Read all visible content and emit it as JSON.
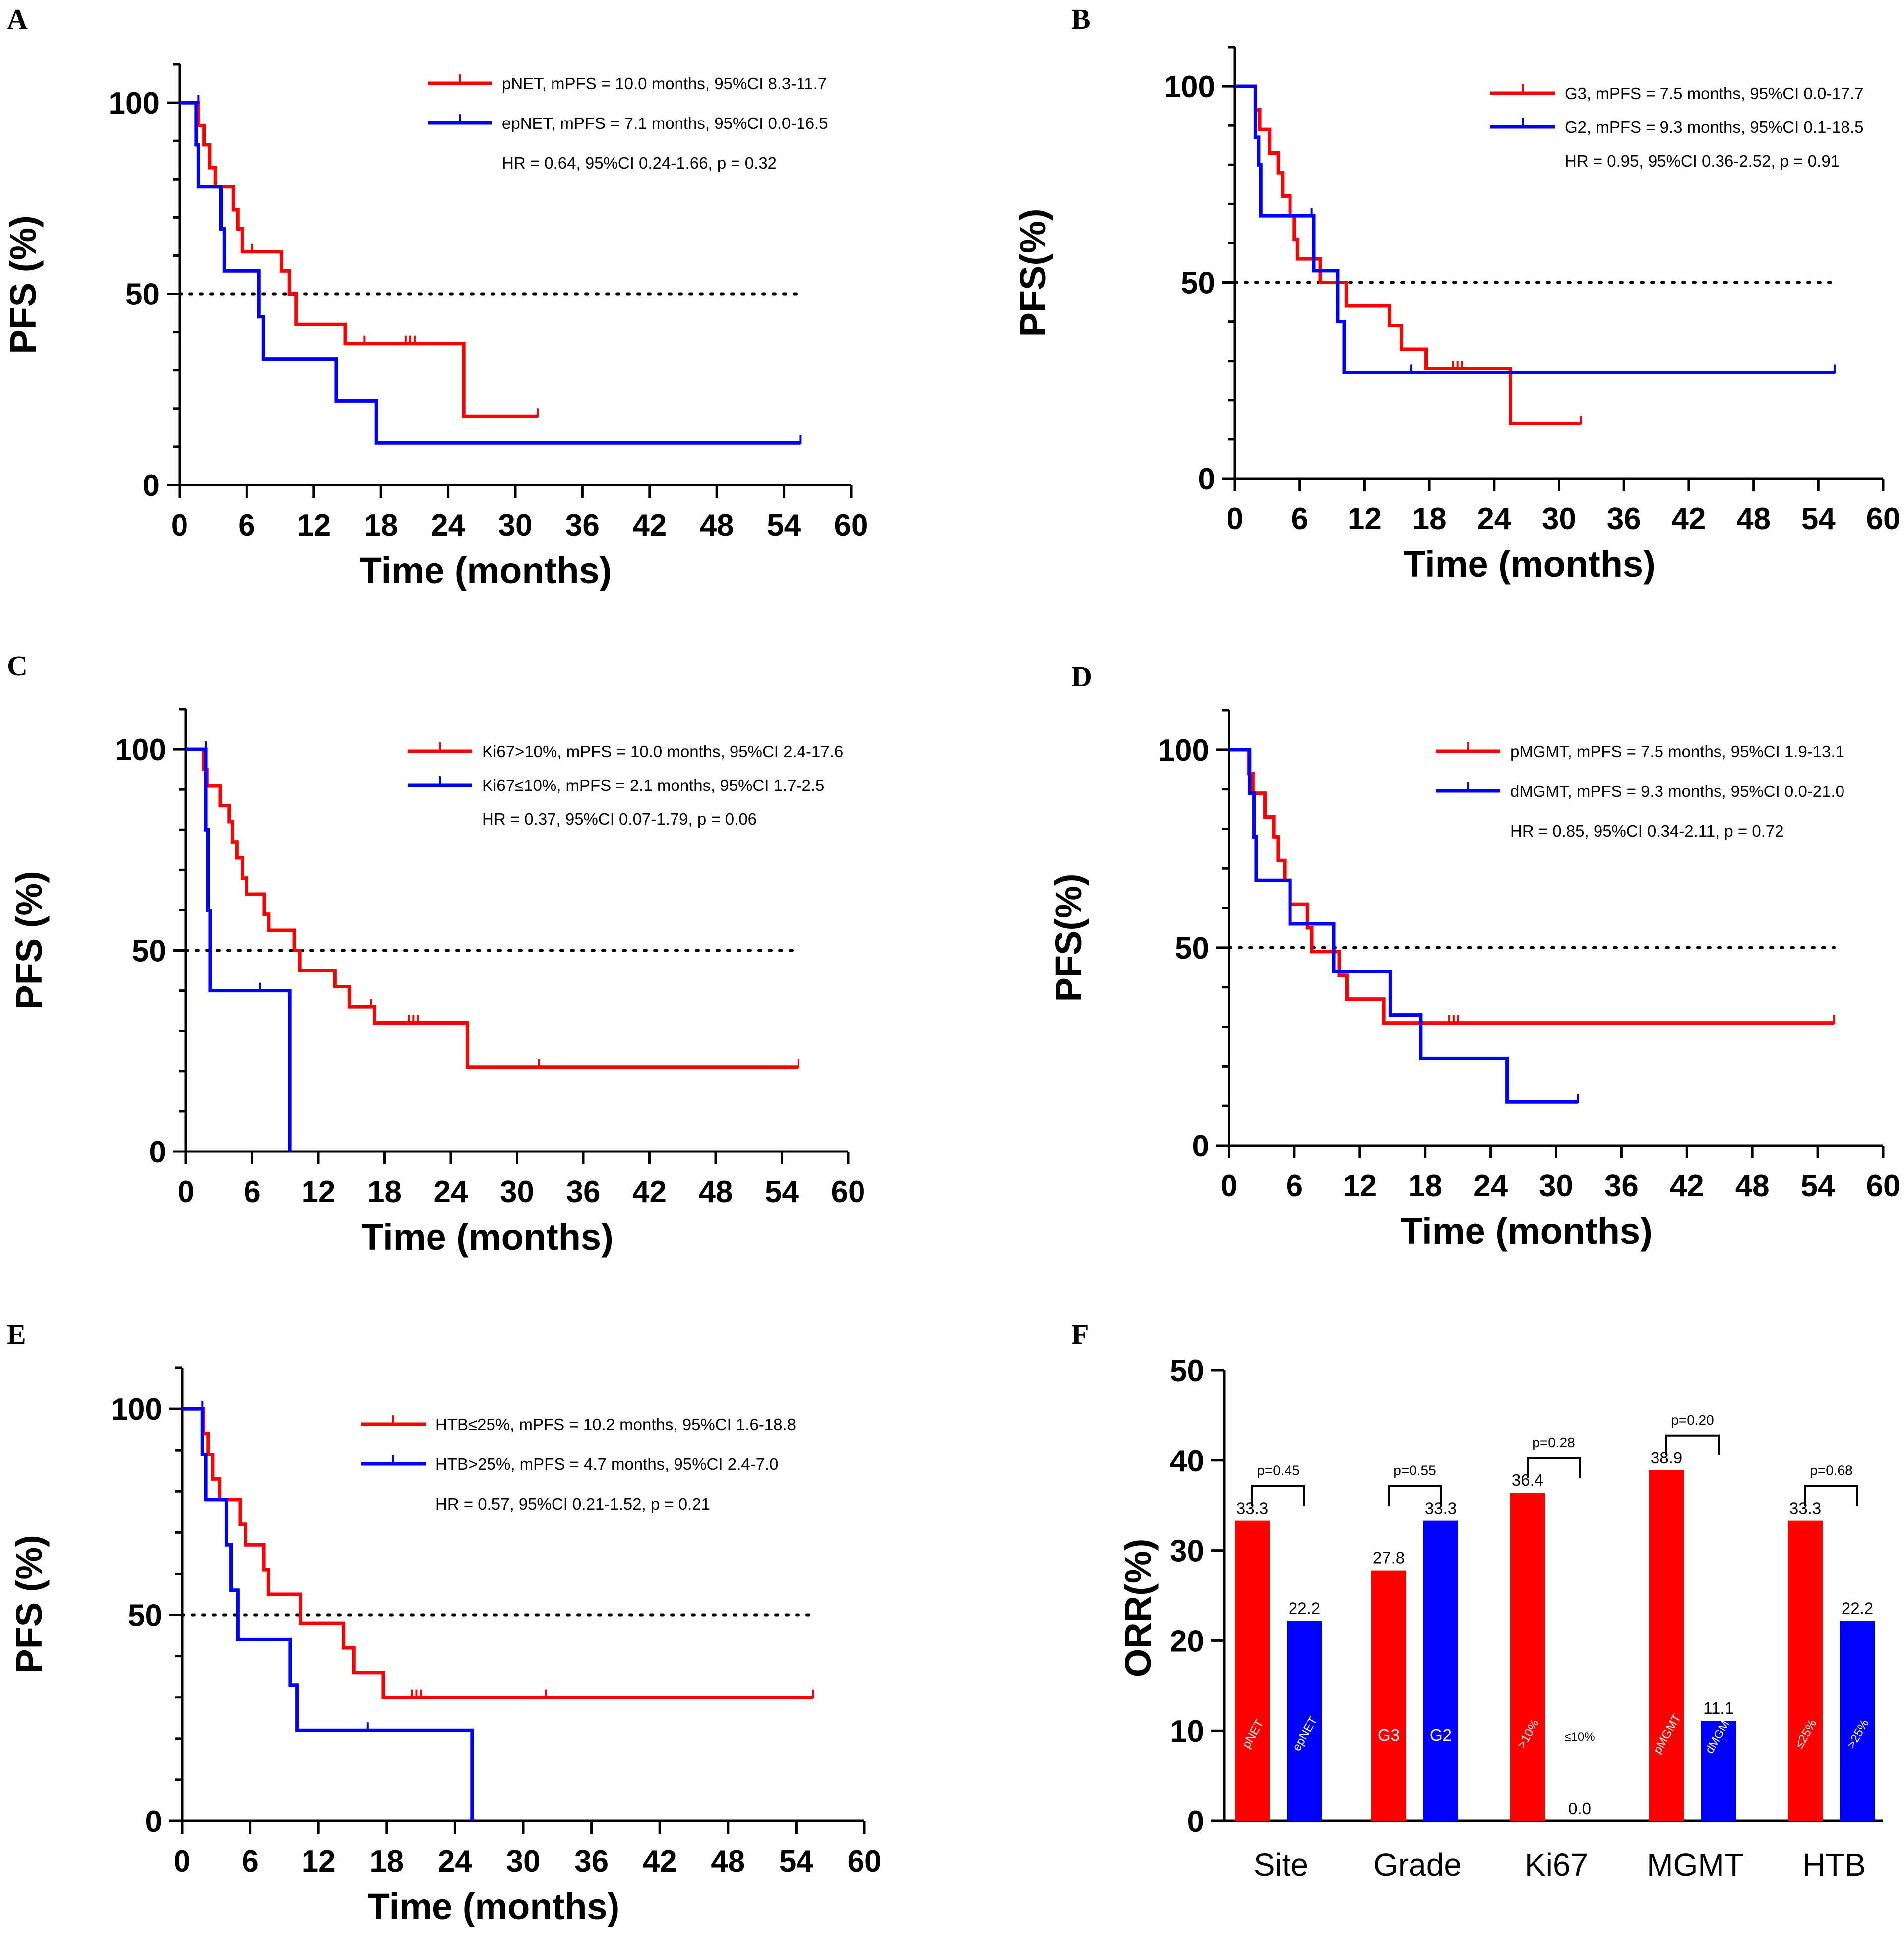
{
  "chart_data": [
    {
      "panel": "A",
      "type": "line",
      "xlabel": "Time (months)",
      "ylabel": "PFS (%)",
      "xlim": [
        0,
        60
      ],
      "xticks": [
        0,
        6,
        12,
        18,
        24,
        30,
        36,
        42,
        48,
        54,
        60
      ],
      "ylim": [
        0,
        110
      ],
      "yticks": [
        0,
        50,
        100
      ],
      "reference_line": 50,
      "legend": {
        "placement": "top-right",
        "note": "HR = 0.64, 95%CI 0.24-1.66, p = 0.32"
      },
      "series": [
        {
          "name": "pNET, mPFS = 10.0 months, 95%CI 8.3-11.7",
          "color": "#ff0000",
          "steps": [
            [
              0,
              100
            ],
            [
              1.7,
              94
            ],
            [
              2.2,
              89
            ],
            [
              2.7,
              83
            ],
            [
              3.2,
              78
            ],
            [
              4.5,
              78
            ],
            [
              4.8,
              72
            ],
            [
              5.2,
              67
            ],
            [
              5.6,
              61
            ],
            [
              8.4,
              61
            ],
            [
              9.1,
              56
            ],
            [
              9.8,
              50
            ],
            [
              10.4,
              42
            ],
            [
              14.8,
              37
            ],
            [
              25.2,
              37
            ],
            [
              25.4,
              18
            ],
            [
              32,
              18
            ]
          ],
          "censors": [
            [
              6.5,
              61
            ],
            [
              16.5,
              37
            ],
            [
              20.2,
              37
            ],
            [
              20.6,
              37
            ],
            [
              21,
              37
            ],
            [
              32,
              18
            ]
          ]
        },
        {
          "name": "epNET, mPFS = 7.1 months, 95%CI 0.0-16.5",
          "color": "#0000ff",
          "steps": [
            [
              0,
              100
            ],
            [
              1.5,
              89
            ],
            [
              1.7,
              78
            ],
            [
              3.4,
              78
            ],
            [
              3.7,
              67
            ],
            [
              4.0,
              56
            ],
            [
              6.8,
              56
            ],
            [
              7.1,
              44
            ],
            [
              7.5,
              33
            ],
            [
              13.8,
              33
            ],
            [
              14.0,
              22
            ],
            [
              17.4,
              22
            ],
            [
              17.6,
              11
            ],
            [
              55.5,
              11
            ]
          ],
          "censors": [
            [
              1.7,
              100
            ],
            [
              55.5,
              11
            ]
          ]
        }
      ]
    },
    {
      "panel": "B",
      "type": "line",
      "xlabel": "Time (months)",
      "ylabel": "PFS(%)",
      "xlim": [
        0,
        60
      ],
      "xticks": [
        0,
        6,
        12,
        18,
        24,
        30,
        36,
        42,
        48,
        54,
        60
      ],
      "ylim": [
        0,
        110
      ],
      "yticks": [
        0,
        50,
        100
      ],
      "reference_line": 50,
      "legend": {
        "placement": "top-right",
        "note": "HR = 0.95, 95%CI 0.36-2.52, p = 0.91"
      },
      "series": [
        {
          "name": "G3, mPFS = 7.5 months, 95%CI 0.0-17.7",
          "color": "#ff0000",
          "steps": [
            [
              0,
              100
            ],
            [
              1.9,
              94
            ],
            [
              2.3,
              89
            ],
            [
              3.2,
              83
            ],
            [
              4.0,
              78
            ],
            [
              4.4,
              72
            ],
            [
              5.1,
              67
            ],
            [
              5.5,
              61
            ],
            [
              5.8,
              56
            ],
            [
              7.5,
              56
            ],
            [
              7.9,
              50
            ],
            [
              9.8,
              50
            ],
            [
              10.3,
              44
            ],
            [
              14.0,
              44
            ],
            [
              14.3,
              39
            ],
            [
              15.4,
              33
            ],
            [
              17.4,
              33
            ],
            [
              17.7,
              28
            ],
            [
              25.3,
              28
            ],
            [
              25.5,
              14
            ],
            [
              32,
              14
            ]
          ],
          "censors": [
            [
              20.2,
              28
            ],
            [
              20.6,
              28
            ],
            [
              21,
              28
            ],
            [
              32,
              14
            ]
          ]
        },
        {
          "name": "G2, mPFS = 9.3 months, 95%CI 0.1-18.5",
          "color": "#0000ff",
          "steps": [
            [
              0,
              100
            ],
            [
              1.9,
              87
            ],
            [
              2.2,
              80
            ],
            [
              2.4,
              67
            ],
            [
              7.1,
              67
            ],
            [
              7.3,
              53
            ],
            [
              9.3,
              53
            ],
            [
              9.5,
              40
            ],
            [
              10.1,
              27
            ],
            [
              55.5,
              27
            ]
          ],
          "censors": [
            [
              7.1,
              67
            ],
            [
              16.3,
              27
            ],
            [
              55.5,
              27
            ]
          ]
        }
      ]
    },
    {
      "panel": "C",
      "type": "line",
      "xlabel": "Time (months)",
      "ylabel": "PFS (%)",
      "xlim": [
        0,
        60
      ],
      "xticks": [
        0,
        6,
        12,
        18,
        24,
        30,
        36,
        42,
        48,
        54,
        60
      ],
      "ylim": [
        0,
        110
      ],
      "yticks": [
        0,
        50,
        100
      ],
      "reference_line": 50,
      "legend": {
        "placement": "top-right",
        "note": "HR = 0.37, 95%CI 0.07-1.79, p = 0.06"
      },
      "series": [
        {
          "name": "Ki67>10%,  mPFS = 10.0 months, 95%CI 2.4-17.6",
          "color": "#ff0000",
          "steps": [
            [
              0,
              100
            ],
            [
              1.6,
              95
            ],
            [
              1.9,
              91
            ],
            [
              3.1,
              86
            ],
            [
              3.9,
              82
            ],
            [
              4.2,
              77
            ],
            [
              4.6,
              73
            ],
            [
              5.1,
              68
            ],
            [
              5.5,
              64
            ],
            [
              7.1,
              59
            ],
            [
              7.5,
              55
            ],
            [
              9.8,
              50
            ],
            [
              10.3,
              45
            ],
            [
              13.5,
              41
            ],
            [
              14.8,
              36
            ],
            [
              16.5,
              36
            ],
            [
              17.1,
              32
            ],
            [
              17.7,
              32
            ],
            [
              25.3,
              32
            ],
            [
              25.5,
              21
            ],
            [
              55.5,
              21
            ]
          ],
          "censors": [
            [
              16.8,
              36
            ],
            [
              20.2,
              32
            ],
            [
              20.6,
              32
            ],
            [
              21,
              32
            ],
            [
              32,
              21
            ],
            [
              55.5,
              21
            ]
          ]
        },
        {
          "name": "Ki67≤10%, mPFS = 2.1 months, 95%CI 1.7-2.5",
          "color": "#0000ff",
          "steps": [
            [
              0,
              100
            ],
            [
              1.7,
              100
            ],
            [
              1.8,
              80
            ],
            [
              2.0,
              60
            ],
            [
              2.2,
              40
            ],
            [
              9.4,
              40
            ],
            [
              9.4,
              0
            ]
          ],
          "censors": [
            [
              1.8,
              100
            ],
            [
              6.7,
              40
            ]
          ]
        }
      ]
    },
    {
      "panel": "D",
      "type": "line",
      "xlabel": "Time (months)",
      "ylabel": "PFS(%)",
      "xlim": [
        0,
        60
      ],
      "xticks": [
        0,
        6,
        12,
        18,
        24,
        30,
        36,
        42,
        48,
        54,
        60
      ],
      "ylim": [
        0,
        110
      ],
      "yticks": [
        0,
        50,
        100
      ],
      "reference_line": 50,
      "legend": {
        "placement": "top-right",
        "note": "HR = 0.85, 95%CI 0.34-2.11, p = 0.72"
      },
      "series": [
        {
          "name": "pMGMT, mPFS = 7.5 months, 95%CI 1.9-13.1",
          "color": "#ff0000",
          "steps": [
            [
              0,
              100
            ],
            [
              1.8,
              94
            ],
            [
              2.2,
              89
            ],
            [
              3.3,
              83
            ],
            [
              4.1,
              78
            ],
            [
              4.5,
              72
            ],
            [
              5.1,
              67
            ],
            [
              5.6,
              61
            ],
            [
              6.7,
              61
            ],
            [
              7.2,
              55
            ],
            [
              7.6,
              49
            ],
            [
              9.5,
              49
            ],
            [
              10.1,
              43
            ],
            [
              10.8,
              37
            ],
            [
              13.8,
              37
            ],
            [
              14.2,
              31
            ],
            [
              55.5,
              31
            ]
          ],
          "censors": [
            [
              20.2,
              31
            ],
            [
              20.6,
              31
            ],
            [
              21,
              31
            ],
            [
              55.5,
              31
            ]
          ]
        },
        {
          "name": "dMGMT, mPFS = 9.3 months, 95%CI 0.0-21.0",
          "color": "#0000ff",
          "steps": [
            [
              0,
              100
            ],
            [
              1.9,
              89
            ],
            [
              2.3,
              78
            ],
            [
              2.5,
              67
            ],
            [
              5.3,
              67
            ],
            [
              5.6,
              56
            ],
            [
              9.3,
              56
            ],
            [
              9.6,
              44
            ],
            [
              14.6,
              44
            ],
            [
              14.8,
              33
            ],
            [
              17.4,
              33
            ],
            [
              17.6,
              22
            ],
            [
              25.3,
              22
            ],
            [
              25.5,
              11
            ],
            [
              32,
              11
            ]
          ],
          "censors": [
            [
              32,
              11
            ]
          ]
        }
      ]
    },
    {
      "panel": "E",
      "type": "line",
      "xlabel": "Time (months)",
      "ylabel": "PFS (%)",
      "xlim": [
        0,
        60
      ],
      "xticks": [
        0,
        6,
        12,
        18,
        24,
        30,
        36,
        42,
        48,
        54,
        60
      ],
      "ylim": [
        0,
        110
      ],
      "yticks": [
        0,
        50,
        100
      ],
      "reference_line": 50,
      "legend": {
        "placement": "top-right",
        "note": "HR = 0.57, 95%CI 0.21-1.52, p = 0.21"
      },
      "series": [
        {
          "name": "HTB≤25%, mPFS = 10.2 months, 95%CI 1.6-18.8",
          "color": "#ff0000",
          "steps": [
            [
              0,
              100
            ],
            [
              1.9,
              94
            ],
            [
              2.3,
              89
            ],
            [
              2.7,
              83
            ],
            [
              3.3,
              78
            ],
            [
              4.9,
              78
            ],
            [
              5.1,
              72
            ],
            [
              5.6,
              67
            ],
            [
              6.8,
              67
            ],
            [
              7.2,
              61
            ],
            [
              7.6,
              55
            ],
            [
              10.1,
              55
            ],
            [
              10.4,
              48
            ],
            [
              13.8,
              48
            ],
            [
              14.2,
              42
            ],
            [
              15.1,
              36
            ],
            [
              17.4,
              36
            ],
            [
              17.7,
              30
            ],
            [
              55.5,
              30
            ]
          ],
          "censors": [
            [
              20.2,
              30
            ],
            [
              20.6,
              30
            ],
            [
              21,
              30
            ],
            [
              32,
              30
            ],
            [
              55.5,
              30
            ]
          ]
        },
        {
          "name": "HTB>25%, mPFS = 4.7 months, 95%CI 2.4-7.0",
          "color": "#0000ff",
          "steps": [
            [
              0,
              100
            ],
            [
              1.8,
              89
            ],
            [
              2.1,
              78
            ],
            [
              3.7,
              78
            ],
            [
              3.9,
              67
            ],
            [
              4.3,
              56
            ],
            [
              4.7,
              56
            ],
            [
              4.9,
              44
            ],
            [
              9.3,
              44
            ],
            [
              9.5,
              33
            ],
            [
              9.8,
              33
            ],
            [
              10.1,
              22
            ],
            [
              25.5,
              22
            ],
            [
              25.5,
              0
            ]
          ],
          "censors": [
            [
              1.8,
              100
            ],
            [
              16.3,
              22
            ]
          ]
        }
      ]
    },
    {
      "panel": "F",
      "type": "bar",
      "xlabel": "",
      "ylabel": "ORR(%)",
      "ylim": [
        0,
        50
      ],
      "yticks": [
        0,
        10,
        20,
        30,
        40,
        50
      ],
      "categories": [
        "Site",
        "Grade",
        "Ki67",
        "MGMT",
        "HTB"
      ],
      "groups": [
        {
          "category": "Site",
          "p": "p=0.45",
          "bars": [
            {
              "label": "pNET",
              "value": 33.3,
              "color": "#ff0000",
              "value_text": "33.3"
            },
            {
              "label": "epNET",
              "value": 22.2,
              "color": "#0000ff",
              "value_text": "22.2"
            }
          ]
        },
        {
          "category": "Grade",
          "p": "p=0.55",
          "bars": [
            {
              "label": "G3",
              "value": 27.8,
              "color": "#ff0000",
              "value_text": "27.8"
            },
            {
              "label": "G2",
              "value": 33.3,
              "color": "#0000ff",
              "value_text": "33.3"
            }
          ]
        },
        {
          "category": "Ki67",
          "p": "p=0.28",
          "bars": [
            {
              "label": ">10%",
              "value": 36.4,
              "color": "#ff0000",
              "value_text": "36.4"
            },
            {
              "label": "≤10%",
              "value": 0.0,
              "color": "#0000ff",
              "value_text": "0.0"
            }
          ]
        },
        {
          "category": "MGMT",
          "p": "p=0.20",
          "bars": [
            {
              "label": "pMGMT",
              "value": 38.9,
              "color": "#ff0000",
              "value_text": "38.9"
            },
            {
              "label": "dMGMT",
              "value": 11.1,
              "color": "#0000ff",
              "value_text": "11.1"
            }
          ]
        },
        {
          "category": "HTB",
          "p": "p=0.68",
          "bars": [
            {
              "label": "≤25%",
              "value": 33.3,
              "color": "#ff0000",
              "value_text": "33.3"
            },
            {
              "label": ">25%",
              "value": 22.2,
              "color": "#0000ff",
              "value_text": "22.2"
            }
          ]
        }
      ]
    }
  ]
}
